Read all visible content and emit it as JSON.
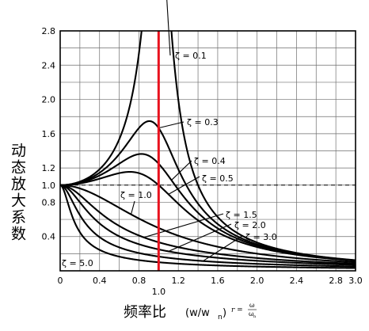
{
  "chart_data": {
    "type": "line",
    "title": "",
    "ylabel": "动态放大系数",
    "xlabel": "频率比",
    "xlabel_paren": "(w/w",
    "xlabel_sub": "n",
    "xlabel_close": ")",
    "xlabel_formula_r": "r =",
    "xlabel_formula_num": "ω",
    "xlabel_formula_den": "ω",
    "xlabel_formula_den_sub": "n",
    "xlim": [
      0,
      3.0
    ],
    "ylim": [
      0,
      2.8
    ],
    "grid": true,
    "x_ticks": [
      {
        "v": 0,
        "label": "0"
      },
      {
        "v": 0.4,
        "label": "0.4"
      },
      {
        "v": 0.8,
        "label": "0.8"
      },
      {
        "v": 1.2,
        "label": "1.2"
      },
      {
        "v": 1.6,
        "label": "1.6"
      },
      {
        "v": 2.0,
        "label": "2.0"
      },
      {
        "v": 2.4,
        "label": "2.4"
      },
      {
        "v": 2.8,
        "label": "2.8"
      },
      {
        "v": 3.0,
        "label": "3.0"
      }
    ],
    "x_extra_label": {
      "v": 1.0,
      "label": "1.0"
    },
    "y_ticks": [
      {
        "v": 0.4,
        "label": "0.4"
      },
      {
        "v": 0.8,
        "label": "0.8"
      },
      {
        "v": 1.0,
        "label": "1.0"
      },
      {
        "v": 1.2,
        "label": "1.2"
      },
      {
        "v": 1.6,
        "label": "1.6"
      },
      {
        "v": 2.0,
        "label": "2.0"
      },
      {
        "v": 2.4,
        "label": "2.4"
      },
      {
        "v": 2.8,
        "label": "2.8"
      }
    ],
    "reference_line_y": 1.0,
    "marker_line_x": 1.0,
    "marker_color": "#e8121e",
    "series": [
      {
        "zeta": 0.1,
        "label": "ζ = 0.1"
      },
      {
        "zeta": 0.3,
        "label": "ζ = 0.3"
      },
      {
        "zeta": 0.4,
        "label": "ζ = 0.4"
      },
      {
        "zeta": 0.5,
        "label": "ζ = 0.5"
      },
      {
        "zeta": 1.0,
        "label": "ζ = 1.0"
      },
      {
        "zeta": 1.5,
        "label": "ζ = 1.5"
      },
      {
        "zeta": 2.0,
        "label": "ζ = 2.0"
      },
      {
        "zeta": 3.0,
        "label": "ζ = 3.0"
      },
      {
        "zeta": 5.0,
        "label": "ζ = 5.0"
      }
    ]
  }
}
